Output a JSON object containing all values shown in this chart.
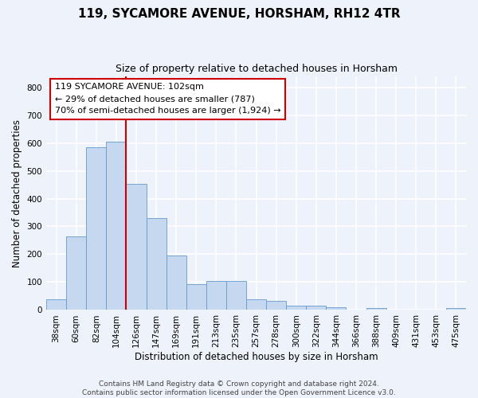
{
  "title": "119, SYCAMORE AVENUE, HORSHAM, RH12 4TR",
  "subtitle": "Size of property relative to detached houses in Horsham",
  "xlabel": "Distribution of detached houses by size in Horsham",
  "ylabel": "Number of detached properties",
  "categories": [
    "38sqm",
    "60sqm",
    "82sqm",
    "104sqm",
    "126sqm",
    "147sqm",
    "169sqm",
    "191sqm",
    "213sqm",
    "235sqm",
    "257sqm",
    "278sqm",
    "300sqm",
    "322sqm",
    "344sqm",
    "366sqm",
    "388sqm",
    "409sqm",
    "431sqm",
    "453sqm",
    "475sqm"
  ],
  "values": [
    38,
    265,
    585,
    605,
    453,
    330,
    195,
    92,
    103,
    105,
    38,
    33,
    15,
    15,
    10,
    0,
    6,
    0,
    0,
    0,
    6
  ],
  "bar_color": "#c5d8f0",
  "bar_edge_color": "#6699cc",
  "vline_x": 3.5,
  "vline_color": "#cc0000",
  "annotation_text": "119 SYCAMORE AVENUE: 102sqm\n← 29% of detached houses are smaller (787)\n70% of semi-detached houses are larger (1,924) →",
  "annotation_box_color": "#ffffff",
  "annotation_box_edge": "#cc0000",
  "ylim": [
    0,
    840
  ],
  "yticks": [
    0,
    100,
    200,
    300,
    400,
    500,
    600,
    700,
    800
  ],
  "footer": "Contains HM Land Registry data © Crown copyright and database right 2024.\nContains public sector information licensed under the Open Government Licence v3.0.",
  "bg_color": "#eef2fa",
  "plot_bg_color": "#eef2fa",
  "grid_color": "#ffffff",
  "title_fontsize": 11,
  "subtitle_fontsize": 9,
  "axis_label_fontsize": 8.5,
  "tick_fontsize": 7.5,
  "footer_fontsize": 6.5
}
